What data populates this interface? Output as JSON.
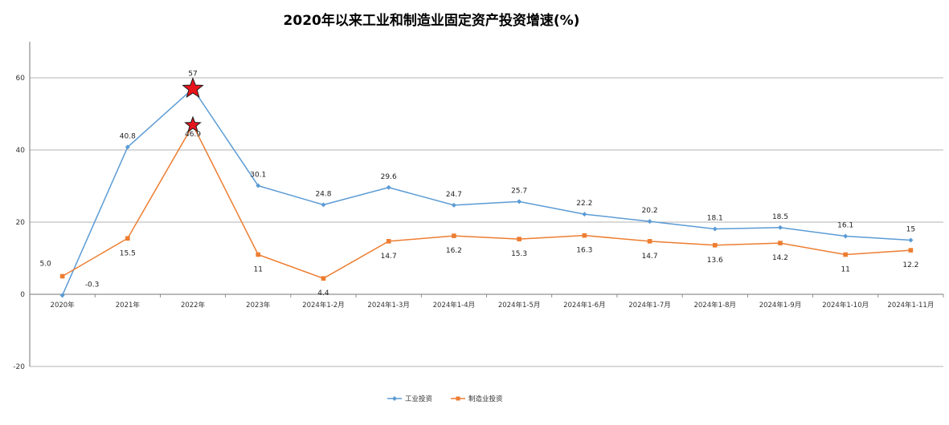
{
  "chart_data": {
    "type": "line",
    "title": "2020年以来工业和制造业固定资产投资增速(%)",
    "categories": [
      "2020年",
      "2021年",
      "2022年",
      "2023年",
      "2024年1-2月",
      "2024年1-3月",
      "2024年1-4月",
      "2024年1-5月",
      "2024年1-6月",
      "2024年1-7月",
      "2024年1-8月",
      "2024年1-9月",
      "2024年1-10月",
      "2024年1-11月"
    ],
    "series": [
      {
        "name": "工业投资",
        "values": [
          -0.3,
          40.8,
          57,
          30.1,
          24.8,
          29.6,
          24.7,
          25.7,
          22.2,
          20.2,
          18.1,
          18.5,
          16.1,
          15
        ],
        "labels": [
          "-0.3",
          "40.8",
          "57",
          "30.1",
          "24.8",
          "29.6",
          "24.7",
          "25.7",
          "22.2",
          "20.2",
          "18.1",
          "18.5",
          "16.1",
          "15"
        ],
        "color": "#5B9BD5",
        "marker": "diamond"
      },
      {
        "name": "制造业投资",
        "values": [
          5.0,
          15.5,
          46.9,
          11,
          4.4,
          14.7,
          16.2,
          15.3,
          16.3,
          14.7,
          13.6,
          14.2,
          11,
          12.2
        ],
        "labels": [
          "5.0",
          "15.5",
          "46.9",
          "11",
          "4.4",
          "14.7",
          "16.2",
          "15.3",
          "16.3",
          "14.7",
          "13.6",
          "14.2",
          "11",
          "12.2"
        ],
        "color": "#ED7D31",
        "marker": "square"
      }
    ],
    "highlight": {
      "category_index": 2,
      "marker": "red-star"
    },
    "yticks": [
      -20,
      0,
      20,
      40,
      60
    ],
    "ylim": [
      -20,
      70
    ],
    "grid": true,
    "legend": "bottom-center",
    "xlabel": "",
    "ylabel": ""
  }
}
